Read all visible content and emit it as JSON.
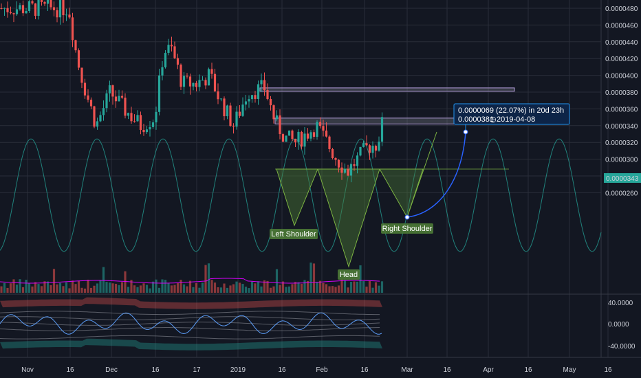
{
  "chart_data": [
    {
      "type": "candlestick",
      "pattern": "inverse head and shoulders",
      "price_axis": {
        "ticks": [
          "0.0000480",
          "0.0000460",
          "0.0000440",
          "0.0000420",
          "0.0000400",
          "0.0000380",
          "0.0000360",
          "0.0000340",
          "0.0000320",
          "0.0000300",
          "0.0000280",
          "0.0000260"
        ],
        "ylim": [
          2.55e-05,
          4.85e-05
        ],
        "last_price": "0.0000343",
        "last_price_color": "#26a69a"
      },
      "time_axis": {
        "ticks": [
          "Nov",
          "16",
          "Dec",
          "16",
          "17",
          "2019",
          "16",
          "Feb",
          "16",
          "Mar",
          "16",
          "Apr",
          "16",
          "May",
          "16"
        ]
      },
      "annotations": {
        "left_shoulder": "Left Shoulder",
        "head": "Head",
        "right_shoulder": "Right Shoulder"
      },
      "measure": {
        "line1": "0.0000069 (22.07%) in 20d 23h",
        "line2_price": "0.0000381",
        "line2_date": "2019-04-08",
        "clock_icon": "clock-icon"
      },
      "zones": [
        {
          "name": "resistance zone",
          "low": 3.81e-05,
          "high": 3.85e-05
        },
        {
          "name": "neckline zone",
          "low": 3.42e-05,
          "high": 3.49e-05
        }
      ],
      "colors": {
        "background": "#131722",
        "up": "#26a69a",
        "down": "#ef5350",
        "pattern_fill": "#4c7a36",
        "projection": "#2962ff",
        "sine": "#26a69a",
        "volume_ma": "#d500f9"
      }
    },
    {
      "type": "line",
      "name": "oscillator",
      "ticks": [
        "40.0000",
        "0.0000",
        "-40.0000"
      ],
      "ylim": [
        -60,
        60
      ]
    }
  ]
}
